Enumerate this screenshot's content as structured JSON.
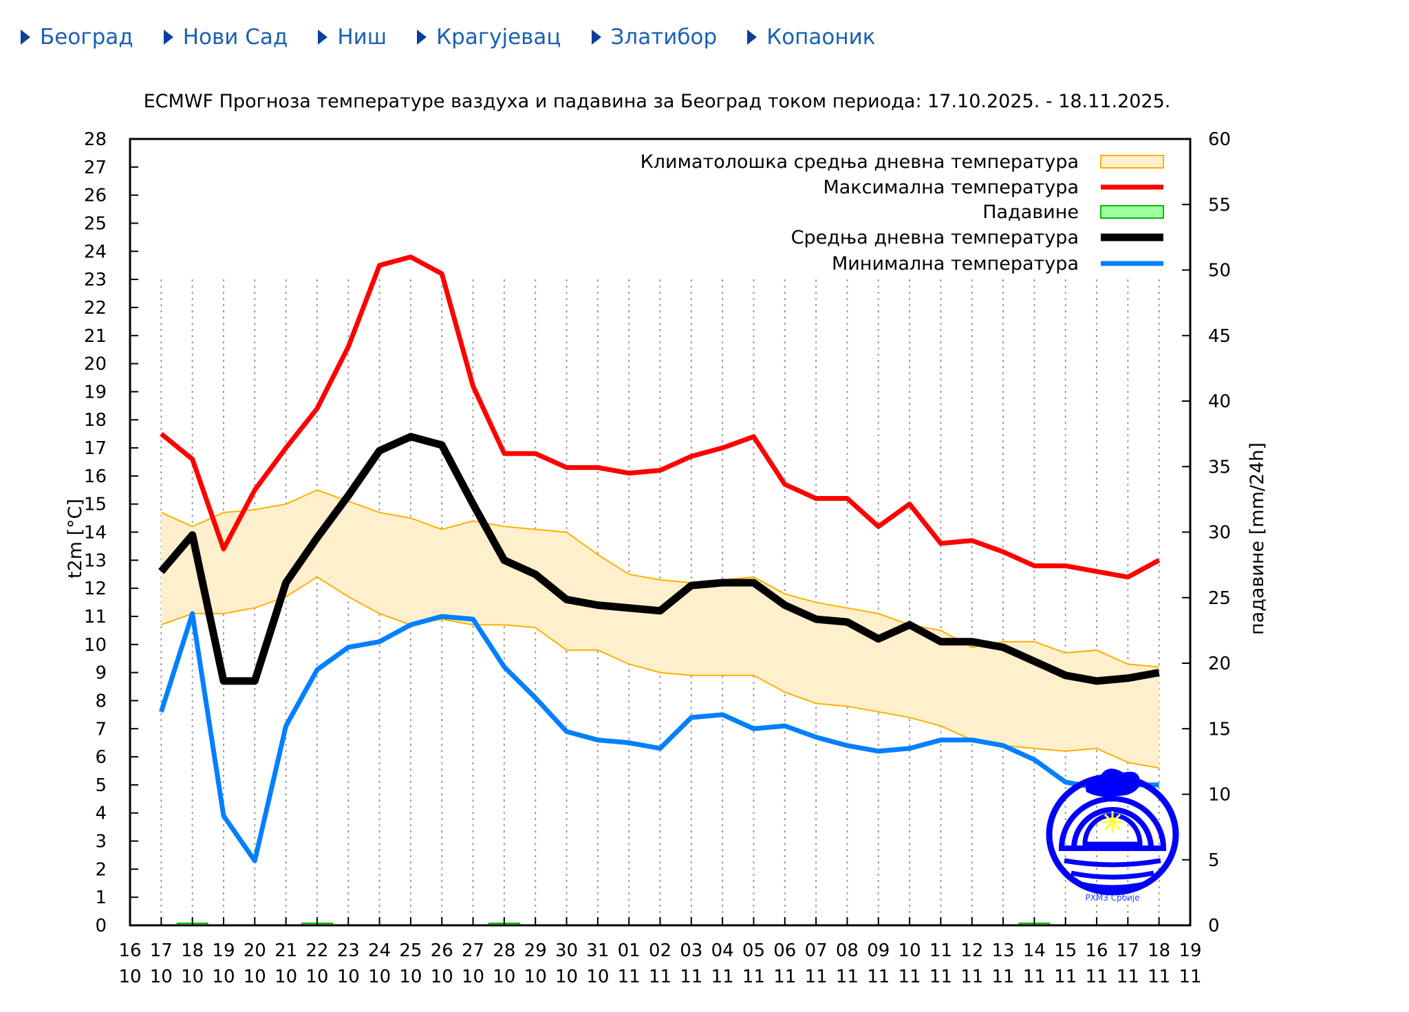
{
  "nav": [
    {
      "label": "Београд"
    },
    {
      "label": "Нови Сад"
    },
    {
      "label": "Ниш"
    },
    {
      "label": "Крагујевац"
    },
    {
      "label": "Златибор"
    },
    {
      "label": "Копаоник"
    }
  ],
  "logo_text": "РХМЗ Србије",
  "chart_data": {
    "type": "line",
    "title": "ECMWF Прогноза температуре ваздуха и падавина за Београд током периода: 17.10.2025. - 18.11.2025.",
    "ylabel": "t2m [°C]",
    "y2label": "падавине [mm/24h]",
    "ylim": [
      0,
      28
    ],
    "y2lim": [
      0,
      60
    ],
    "yticks": [
      0,
      1,
      2,
      3,
      4,
      5,
      6,
      7,
      8,
      9,
      10,
      11,
      12,
      13,
      14,
      15,
      16,
      17,
      18,
      19,
      20,
      21,
      22,
      23,
      24,
      25,
      26,
      27,
      28
    ],
    "y2ticks": [
      0,
      5,
      10,
      15,
      20,
      25,
      30,
      35,
      40,
      45,
      50,
      55,
      60
    ],
    "xticks": [
      [
        "16",
        "10"
      ],
      [
        "17",
        "10"
      ],
      [
        "18",
        "10"
      ],
      [
        "19",
        "10"
      ],
      [
        "20",
        "10"
      ],
      [
        "21",
        "10"
      ],
      [
        "22",
        "10"
      ],
      [
        "23",
        "10"
      ],
      [
        "24",
        "10"
      ],
      [
        "25",
        "10"
      ],
      [
        "26",
        "10"
      ],
      [
        "27",
        "10"
      ],
      [
        "28",
        "10"
      ],
      [
        "29",
        "10"
      ],
      [
        "30",
        "10"
      ],
      [
        "31",
        "10"
      ],
      [
        "01",
        "11"
      ],
      [
        "02",
        "11"
      ],
      [
        "03",
        "11"
      ],
      [
        "04",
        "11"
      ],
      [
        "05",
        "11"
      ],
      [
        "06",
        "11"
      ],
      [
        "07",
        "11"
      ],
      [
        "08",
        "11"
      ],
      [
        "09",
        "11"
      ],
      [
        "10",
        "11"
      ],
      [
        "11",
        "11"
      ],
      [
        "12",
        "11"
      ],
      [
        "13",
        "11"
      ],
      [
        "14",
        "11"
      ],
      [
        "15",
        "11"
      ],
      [
        "16",
        "11"
      ],
      [
        "17",
        "11"
      ],
      [
        "18",
        "11"
      ],
      [
        "19",
        "11"
      ]
    ],
    "x_start_index": 1,
    "legend_position": "top-right",
    "legend": [
      {
        "label": "Климатолошка средња дневна температура",
        "key": "clim"
      },
      {
        "label": "Максимална температура",
        "key": "max"
      },
      {
        "label": "Падавине",
        "key": "precip"
      },
      {
        "label": "Средња дневна температура",
        "key": "mean"
      },
      {
        "label": "Минимална температура",
        "key": "min"
      }
    ],
    "colors": {
      "max": "#ff0000",
      "mean": "#000000",
      "min": "#0080ff",
      "clim_fill": "#ffefcc",
      "clim_line": "#ffb000",
      "precip_fill": "#a0ffa0",
      "precip_line": "#00c000"
    },
    "series": {
      "max": [
        17.5,
        16.6,
        13.4,
        15.5,
        17.0,
        18.4,
        20.6,
        23.5,
        23.8,
        23.2,
        19.2,
        16.8,
        16.8,
        16.3,
        16.3,
        16.1,
        16.2,
        16.7,
        17.0,
        17.4,
        15.7,
        15.2,
        15.2,
        14.2,
        15.0,
        13.6,
        13.7,
        13.3,
        12.8,
        12.8,
        12.6,
        12.4,
        13.0
      ],
      "mean": [
        12.6,
        13.9,
        8.7,
        8.7,
        12.2,
        13.8,
        15.3,
        16.9,
        17.4,
        17.1,
        15.0,
        13.0,
        12.5,
        11.6,
        11.4,
        11.3,
        11.2,
        12.1,
        12.2,
        12.2,
        11.4,
        10.9,
        10.8,
        10.2,
        10.7,
        10.1,
        10.1,
        9.9,
        9.4,
        8.9,
        8.7,
        8.8,
        9.0
      ],
      "min": [
        7.6,
        11.1,
        3.9,
        2.3,
        7.1,
        9.1,
        9.9,
        10.1,
        10.7,
        11.0,
        10.9,
        9.2,
        8.1,
        6.9,
        6.6,
        6.5,
        6.3,
        7.4,
        7.5,
        7.0,
        7.1,
        6.7,
        6.4,
        6.2,
        6.3,
        6.6,
        6.6,
        6.4,
        5.9,
        5.1,
        4.9,
        5.0,
        5.0
      ],
      "clim_upper": [
        14.7,
        14.2,
        14.7,
        14.8,
        15.0,
        15.5,
        15.1,
        14.7,
        14.5,
        14.1,
        14.4,
        14.2,
        14.1,
        14.0,
        13.2,
        12.5,
        12.3,
        12.2,
        12.3,
        12.4,
        11.8,
        11.5,
        11.3,
        11.1,
        10.7,
        10.5,
        9.9,
        10.1,
        10.1,
        9.7,
        9.8,
        9.3,
        9.2
      ],
      "clim_lower": [
        10.7,
        11.1,
        11.1,
        11.3,
        11.7,
        12.4,
        11.7,
        11.1,
        10.7,
        10.9,
        10.7,
        10.7,
        10.6,
        9.8,
        9.8,
        9.3,
        9.0,
        8.9,
        8.9,
        8.9,
        8.3,
        7.9,
        7.8,
        7.6,
        7.4,
        7.1,
        6.6,
        6.4,
        6.3,
        6.2,
        6.3,
        5.8,
        5.6
      ],
      "precip": [
        0,
        0.1,
        0,
        0,
        0,
        0.1,
        0,
        0,
        0,
        0,
        0,
        0.1,
        0,
        0,
        0,
        0,
        0,
        0,
        0,
        0,
        0,
        0,
        0,
        0,
        0,
        0,
        0,
        0,
        0.1,
        0,
        0,
        0,
        0
      ]
    }
  }
}
